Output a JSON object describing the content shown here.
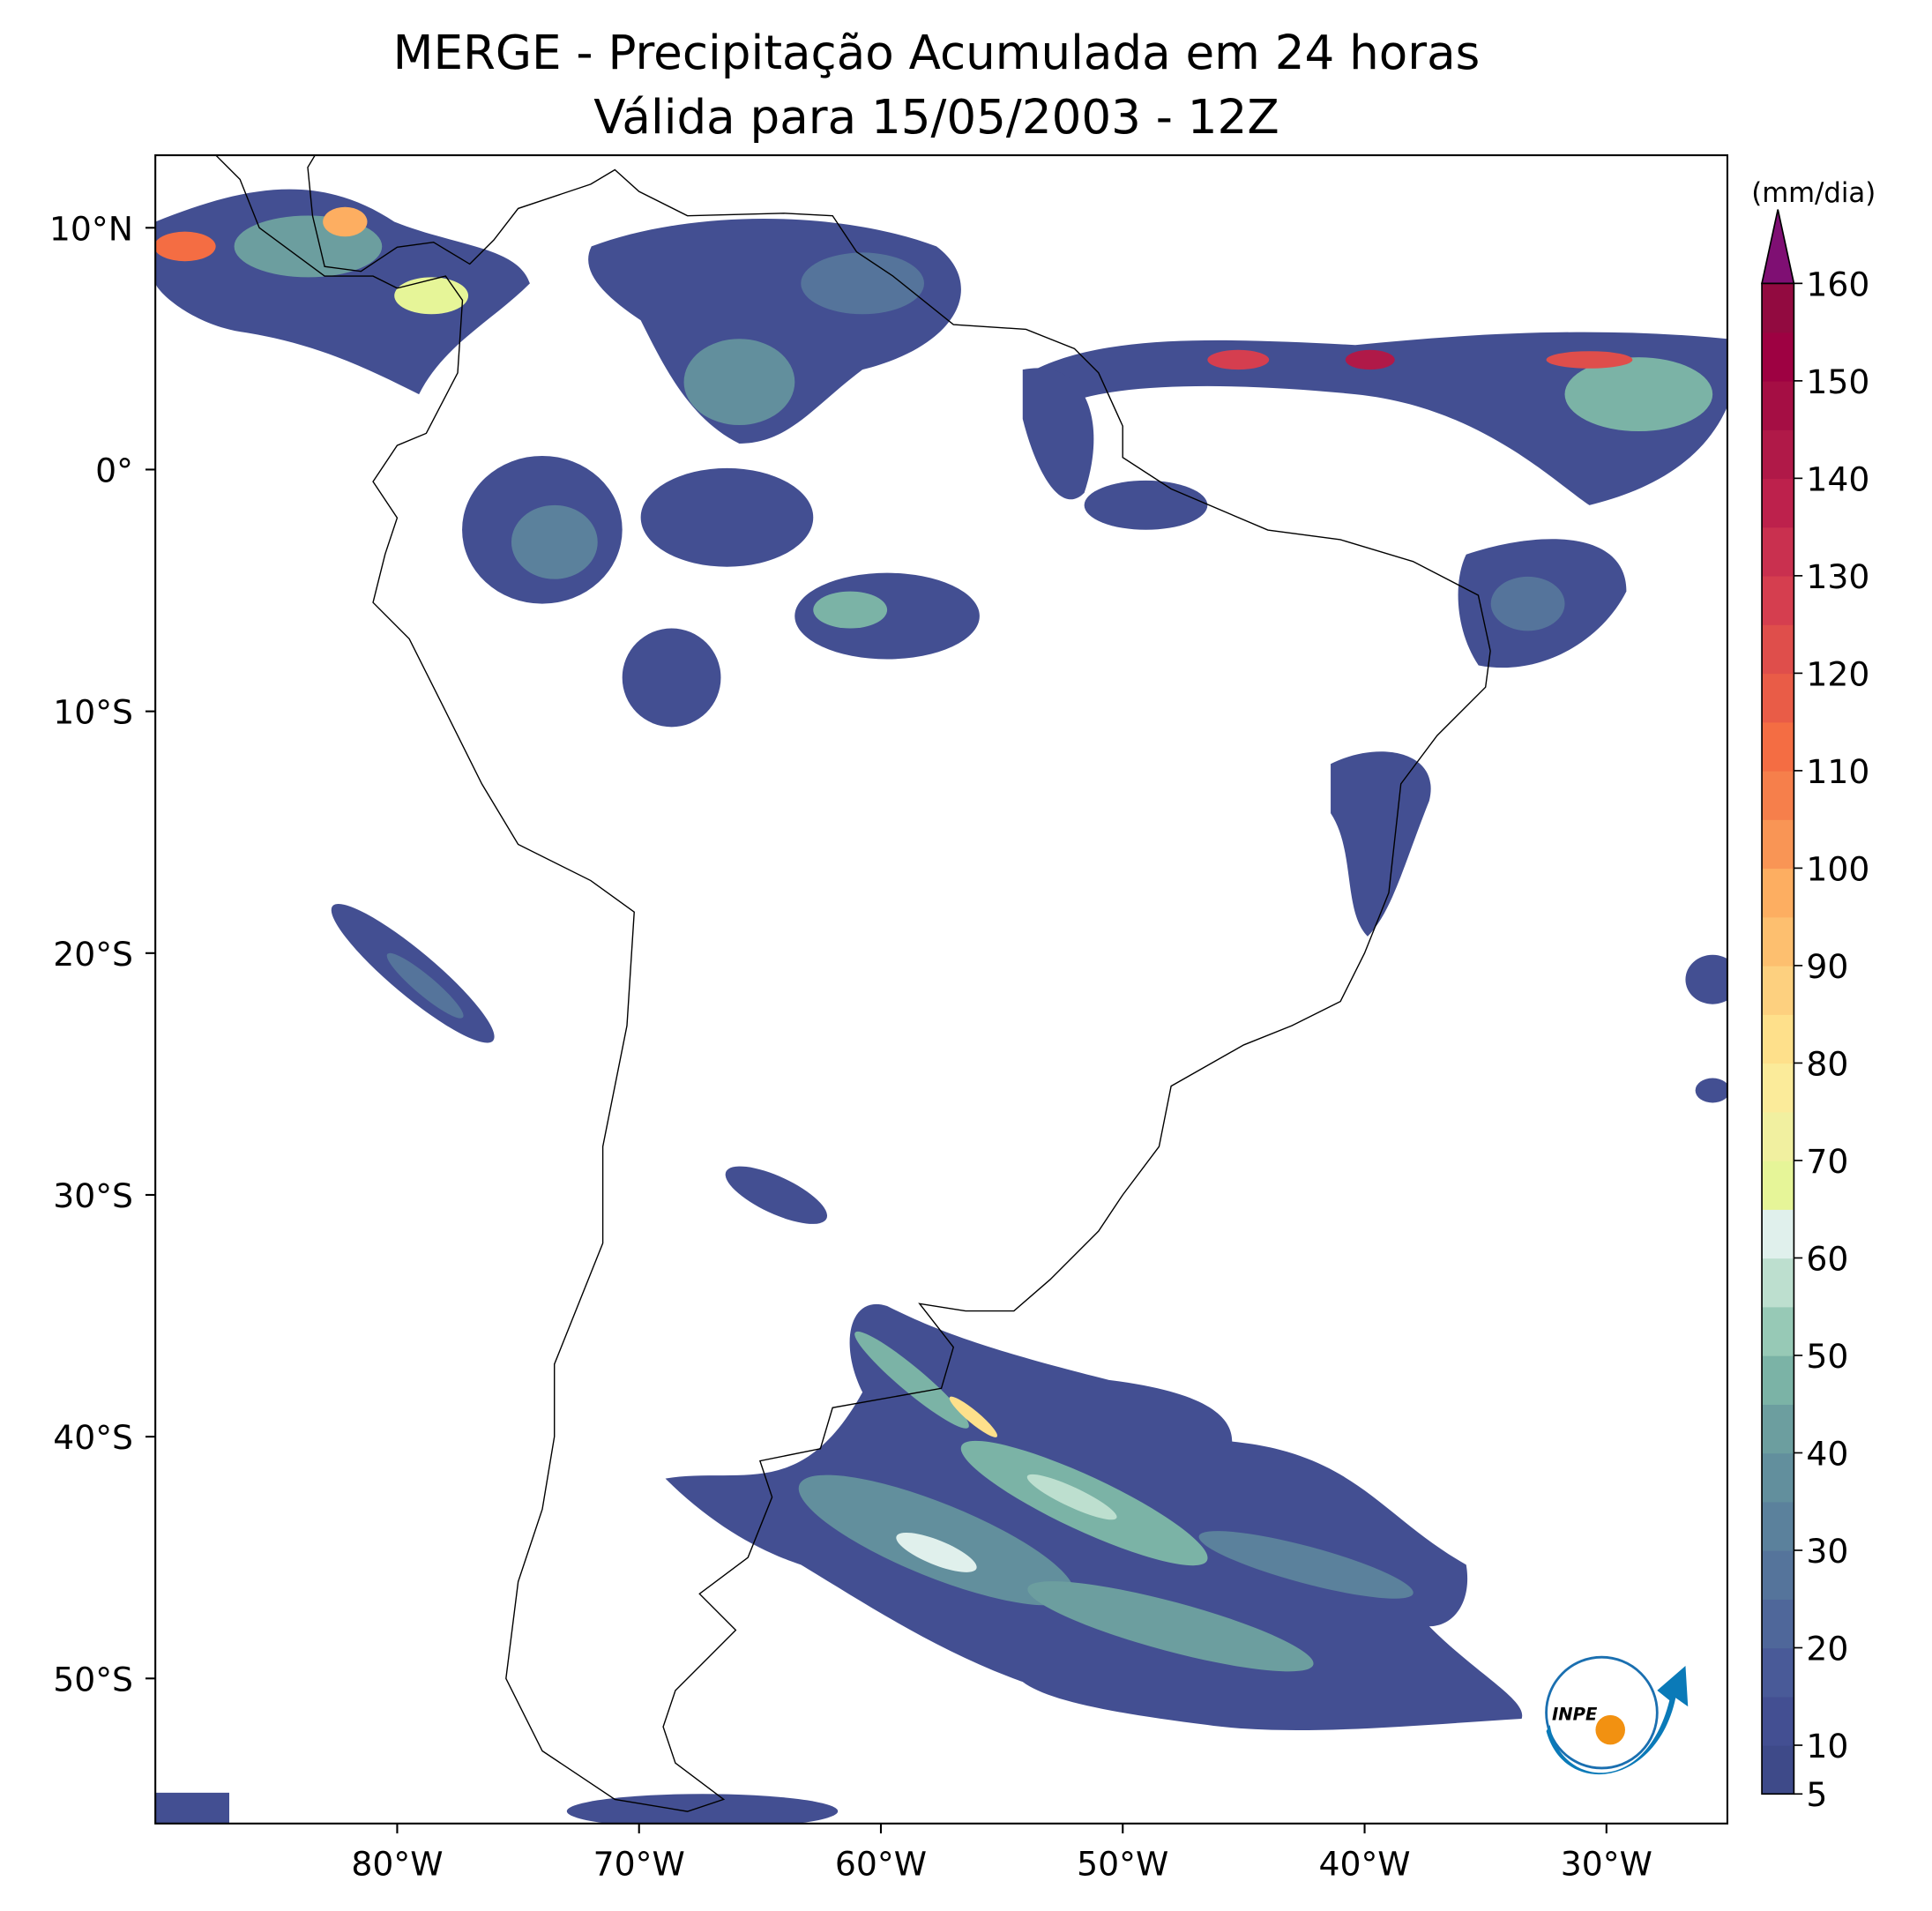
{
  "title": "MERGE - Precipitação Acumulada em 24 horas",
  "subtitle": "Válida para 15/05/2003 - 12Z",
  "map": {
    "xlim": [
      -90,
      -25
    ],
    "ylim": [
      -56,
      13
    ],
    "xticks": [
      {
        "value": -80,
        "label": "80°W"
      },
      {
        "value": -70,
        "label": "70°W"
      },
      {
        "value": -60,
        "label": "60°W"
      },
      {
        "value": -50,
        "label": "50°W"
      },
      {
        "value": -40,
        "label": "40°W"
      },
      {
        "value": -30,
        "label": "30°W"
      }
    ],
    "yticks": [
      {
        "value": 10,
        "label": "10°N"
      },
      {
        "value": 0,
        "label": "0°"
      },
      {
        "value": -10,
        "label": "10°S"
      },
      {
        "value": -20,
        "label": "20°S"
      },
      {
        "value": -30,
        "label": "30°S"
      },
      {
        "value": -40,
        "label": "40°S"
      },
      {
        "value": -50,
        "label": "50°S"
      }
    ]
  },
  "colorbar": {
    "label": "(mm/dia)",
    "lim": [
      5,
      160
    ],
    "ticks": [
      5,
      10,
      20,
      30,
      40,
      50,
      60,
      70,
      80,
      90,
      100,
      110,
      120,
      130,
      140,
      150,
      160
    ],
    "levels": [
      5,
      10,
      15,
      20,
      25,
      30,
      35,
      40,
      45,
      50,
      55,
      60,
      65,
      70,
      75,
      80,
      85,
      90,
      95,
      100,
      105,
      110,
      115,
      120,
      125,
      130,
      135,
      140,
      145,
      150,
      155,
      160
    ],
    "colors": [
      "#3e4a89",
      "#434f92",
      "#495a98",
      "#4f679a",
      "#55749b",
      "#5b819c",
      "#628f9d",
      "#6c9e9f",
      "#7bb3a6",
      "#97c9b6",
      "#bddfcf",
      "#e0f0ec",
      "#e6f598",
      "#f1f0a0",
      "#fbeb9a",
      "#fee08b",
      "#fdd07f",
      "#fdbf6f",
      "#fdae61",
      "#f99555",
      "#f67f4b",
      "#f46d43",
      "#e95c47",
      "#df4e4b",
      "#d53e4f",
      "#c9304f",
      "#bd214c",
      "#b01948",
      "#a50e44",
      "#9e0142",
      "#920a40"
    ],
    "extend_color": "#7f0f73"
  },
  "logo": "INPE"
}
